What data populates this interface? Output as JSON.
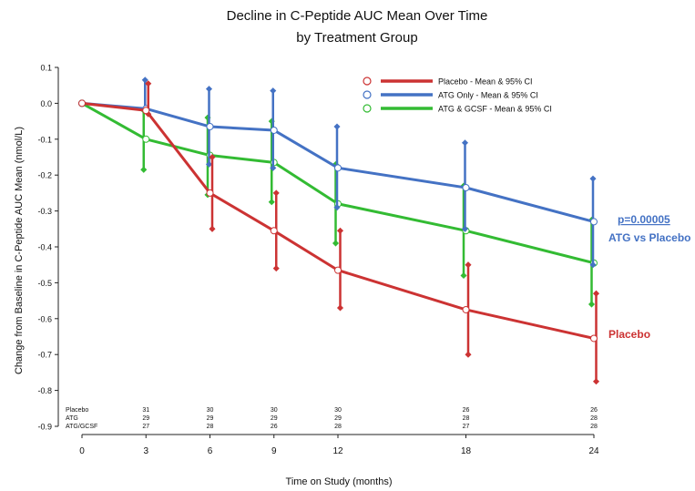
{
  "chart_data": {
    "type": "line",
    "title": "Decline in C-Peptide AUC Mean Over Time",
    "subtitle": "by Treatment Group",
    "xlabel": "Time on Study (months)",
    "ylabel": "Change from Baseline in C-Peptide AUC Mean (nmol/L)",
    "x": [
      0,
      3,
      6,
      9,
      12,
      18,
      24
    ],
    "x_ticks": [
      "0",
      "3",
      "6",
      "9",
      "12",
      "18",
      "24"
    ],
    "y_ticks": [
      "0.1",
      "0.0",
      "-0.1",
      "-0.2",
      "-0.3",
      "-0.4",
      "-0.5",
      "-0.6",
      "-0.7",
      "-0.8",
      "-0.9"
    ],
    "ylim": [
      -0.9,
      0.1
    ],
    "grid": false,
    "legend_position": "top-right",
    "series": [
      {
        "name": "Placebo - Mean & 95% CI",
        "color": "#cc3333",
        "mean": [
          0.0,
          -0.02,
          -0.25,
          -0.355,
          -0.465,
          -0.575,
          -0.655
        ],
        "upper": [
          0.0,
          0.055,
          -0.15,
          -0.25,
          -0.355,
          -0.45,
          -0.53
        ],
        "lower": [
          0.0,
          -0.03,
          -0.35,
          -0.46,
          -0.57,
          -0.7,
          -0.775
        ]
      },
      {
        "name": "ATG Only - Mean & 95% CI",
        "color": "#4472c4",
        "mean": [
          0.0,
          -0.015,
          -0.065,
          -0.075,
          -0.18,
          -0.235,
          -0.33
        ],
        "upper": [
          0.0,
          0.065,
          0.04,
          0.035,
          -0.065,
          -0.11,
          -0.21
        ],
        "lower": [
          0.0,
          -0.02,
          -0.17,
          -0.18,
          -0.29,
          -0.35,
          -0.45
        ]
      },
      {
        "name": "ATG & GCSF - Mean & 95% CI",
        "color": "#33bb33",
        "mean": [
          0.0,
          -0.1,
          -0.145,
          -0.165,
          -0.28,
          -0.355,
          -0.445
        ],
        "upper": [
          0.0,
          -0.02,
          -0.04,
          -0.05,
          -0.17,
          -0.23,
          -0.325
        ],
        "lower": [
          0.0,
          -0.185,
          -0.255,
          -0.275,
          -0.39,
          -0.48,
          -0.56
        ]
      }
    ],
    "annotations": [
      {
        "text": "p=0.00005",
        "color": "#4472c4"
      },
      {
        "text": "ATG vs Placebo",
        "color": "#4472c4"
      },
      {
        "text": "Placebo",
        "color": "#cc3333"
      }
    ],
    "n_table": {
      "rows": [
        {
          "label": "Placebo",
          "values": [
            "31",
            "30",
            "30",
            "30",
            "26",
            "26"
          ]
        },
        {
          "label": "ATG",
          "values": [
            "29",
            "29",
            "29",
            "29",
            "28",
            "28"
          ]
        },
        {
          "label": "ATG/GCSF",
          "values": [
            "27",
            "28",
            "26",
            "28",
            "27",
            "28"
          ]
        }
      ]
    }
  }
}
